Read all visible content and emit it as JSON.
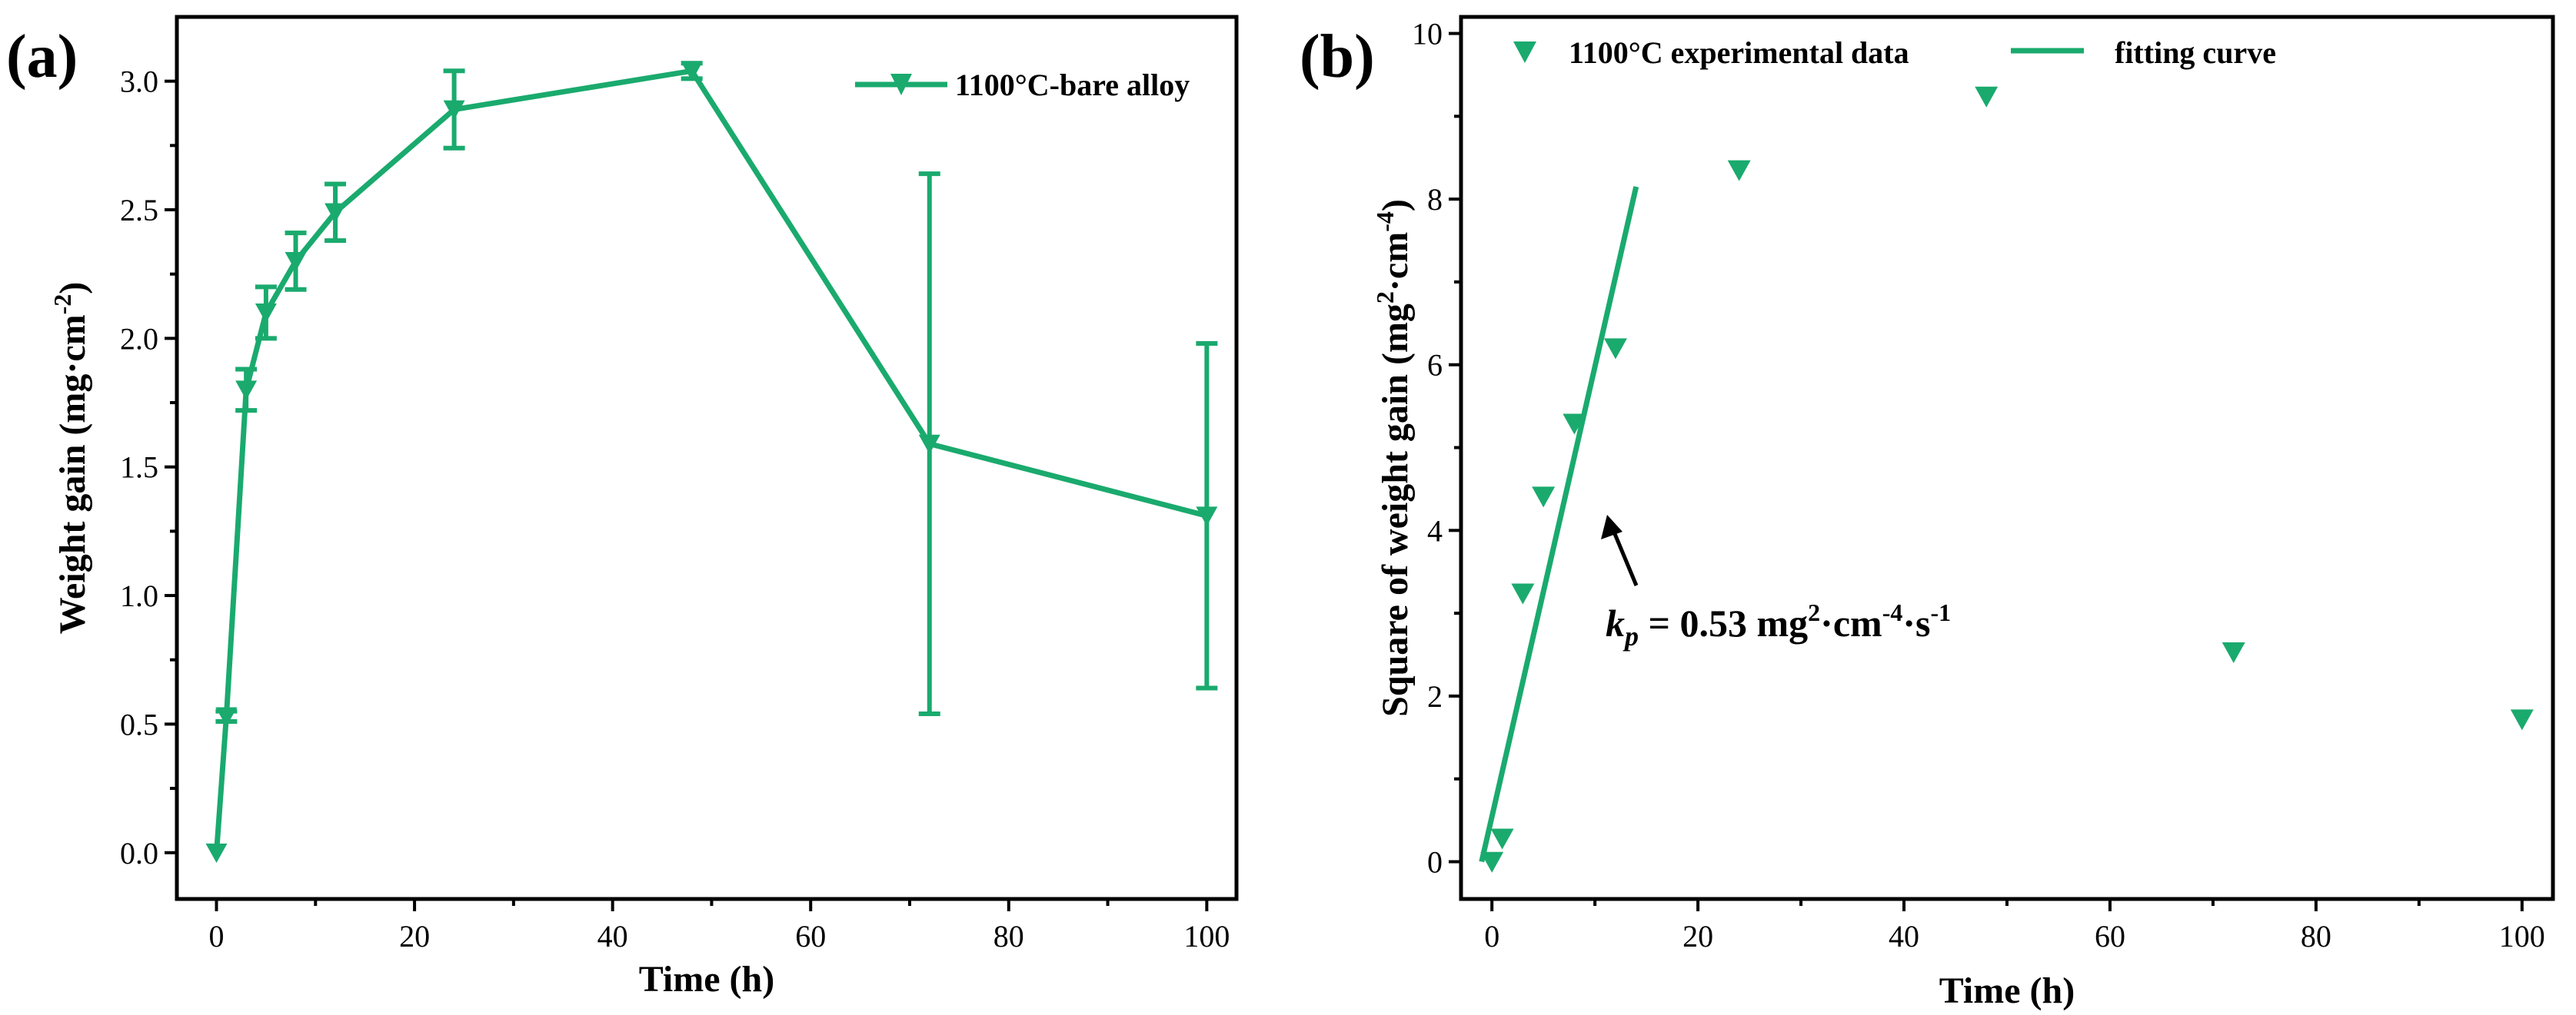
{
  "colors": {
    "series": "#1aaa6e",
    "axis": "#000000"
  },
  "chart_data": [
    {
      "panel": "(a)",
      "type": "line",
      "title": "",
      "xlabel": "Time (h)",
      "ylabel": "Weight gain (mg·cm⁻²)",
      "ylabel_parts": {
        "main": "Weight gain (mg·cm",
        "sup": "-2",
        "close": ")"
      },
      "xlim": [
        -4,
        103
      ],
      "ylim": [
        -0.18,
        3.25
      ],
      "xticks": [
        0,
        20,
        40,
        60,
        80,
        100
      ],
      "xtick_labels": [
        "0",
        "20",
        "40",
        "60",
        "80",
        "100"
      ],
      "yticks": [
        0.0,
        0.5,
        1.0,
        1.5,
        2.0,
        2.5,
        3.0
      ],
      "ytick_labels": [
        "0.0",
        "0.5",
        "1.0",
        "1.5",
        "2.0",
        "2.5",
        "3.0"
      ],
      "legend": {
        "label": "1100°C-bare alloy",
        "position": "top-right"
      },
      "series": [
        {
          "name": "1100°C-bare alloy",
          "x": [
            0,
            1,
            3,
            5,
            8,
            12,
            24,
            48,
            72,
            100
          ],
          "y": [
            0.0,
            0.53,
            1.8,
            2.1,
            2.3,
            2.49,
            2.89,
            3.04,
            1.59,
            1.31
          ],
          "yerr": [
            0.0,
            0.02,
            0.08,
            0.1,
            0.11,
            0.11,
            0.15,
            0.03,
            1.05,
            0.67
          ]
        }
      ]
    },
    {
      "panel": "(b)",
      "type": "scatter",
      "title": "",
      "xlabel": "Time (h)",
      "ylabel": "Square of weight gain (mg²·cm⁻⁴)",
      "ylabel_parts": {
        "main": "Square of weight gain (mg",
        "sup1": "2",
        "mid": "·cm",
        "sup2": "-4",
        "close": ")"
      },
      "xlim": [
        -3,
        103
      ],
      "ylim": [
        -0.45,
        10.2
      ],
      "xticks": [
        0,
        20,
        40,
        60,
        80,
        100
      ],
      "xtick_labels": [
        "0",
        "20",
        "40",
        "60",
        "80",
        "100"
      ],
      "yticks": [
        0,
        2,
        4,
        6,
        8,
        10
      ],
      "ytick_labels": [
        "0",
        "2",
        "4",
        "6",
        "8",
        "10"
      ],
      "legend": {
        "scatter_label": "1100°C experimental data",
        "line_label": "fitting curve",
        "position": "top"
      },
      "series": [
        {
          "name": "1100°C experimental data",
          "x": [
            0,
            1,
            3,
            5,
            8,
            12,
            24,
            48,
            72,
            100
          ],
          "y": [
            0.0,
            0.28,
            3.24,
            4.41,
            5.29,
            6.2,
            8.35,
            9.24,
            2.53,
            1.72
          ]
        },
        {
          "name": "fitting curve",
          "x": [
            -1,
            14
          ],
          "y": [
            0.0,
            8.15
          ]
        }
      ],
      "annotation": {
        "k": "k",
        "sub": "p",
        "eq": " = 0.53 mg",
        "sup1": "2",
        "mid1": "·cm",
        "sup2": "-4",
        "mid2": "·s",
        "sup3": "-1"
      }
    }
  ]
}
